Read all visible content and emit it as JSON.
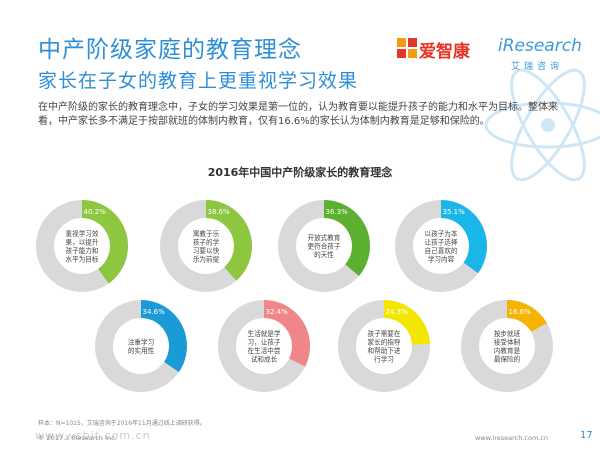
{
  "header": {
    "title": "中产阶级家庭的教育理念",
    "subtitle": "家长在子女的教育上更重视学习效果"
  },
  "logo": {
    "brand": "爱智康",
    "ires": "iResearch",
    "ires_cn": "艾瑞咨询"
  },
  "description": "在中产阶级的家长的教育理念中，子女的学习效果是第一位的，认为教育要以能提升孩子的能力和水平为目标。整体来看，中产家长多不满足于按部就班的体制内教育，仅有16.6%的家长认为体制内教育是足够和保险的。",
  "footer": {
    "footnote": "样本：N=1015，艾瑞咨询于2016年11月通过线上调研获得。",
    "copyright": "© 2017.3  iResearch Inc.",
    "website": "www.iresearch.com.cn",
    "page": "17",
    "watermark": "www.vsbit.com.cn"
  },
  "colors": {
    "accent": "#2f8fd6",
    "track": "#d9d9d9",
    "green": "#8dc63f",
    "green_dark": "#5cb030",
    "cyan": "#1bb6e8",
    "blue": "#1a9bd7",
    "pink": "#f0868a",
    "yellow": "#f3e600",
    "orange": "#f4b400"
  },
  "chart_data": {
    "type": "pie",
    "title": "2016年中国中产阶级家长的教育理念",
    "unit": "%",
    "items": [
      {
        "label": "重视学习效果，以提升孩子能力和水平为目标",
        "lines": [
          "重视学习效",
          "果，以提升",
          "孩子能力和",
          "水平为目标"
        ],
        "value": 40.2,
        "color": "#8dc63f"
      },
      {
        "label": "寓教于乐孩子的学习要以快乐为前提",
        "lines": [
          "寓教于乐",
          "孩子的学",
          "习要以快",
          "乐为前提"
        ],
        "value": 38.6,
        "color": "#8dc63f"
      },
      {
        "label": "开放式教育更符合孩子的天性",
        "lines": [
          "开放式教育",
          "更符合孩子",
          "的天性"
        ],
        "value": 36.3,
        "color": "#5cb030"
      },
      {
        "label": "以孩子为本让孩子选择自己喜欢的学习内容",
        "lines": [
          "以孩子为本",
          "让孩子选择",
          "自己喜欢的",
          "学习内容"
        ],
        "value": 35.1,
        "color": "#1bb6e8"
      },
      {
        "label": "注重学习的实用性",
        "lines": [
          "注重学习",
          "的实用性"
        ],
        "value": 34.6,
        "color": "#1a9bd7"
      },
      {
        "label": "生活就是学习，让孩子在生活中尝试和成长",
        "lines": [
          "生活就是学",
          "习，让孩子",
          "在生活中尝",
          "试和成长"
        ],
        "value": 32.4,
        "color": "#f0868a"
      },
      {
        "label": "孩子需要在家长的指导和帮助下进行学习",
        "lines": [
          "孩子需要在",
          "家长的指导",
          "和帮助下进",
          "行学习"
        ],
        "value": 24.3,
        "color": "#f3e600"
      },
      {
        "label": "按步就班接受体制内教育是最保险的",
        "lines": [
          "按步就班",
          "接受体制",
          "内教育是",
          "最保险的"
        ],
        "value": 16.6,
        "color": "#f4b400"
      }
    ]
  }
}
